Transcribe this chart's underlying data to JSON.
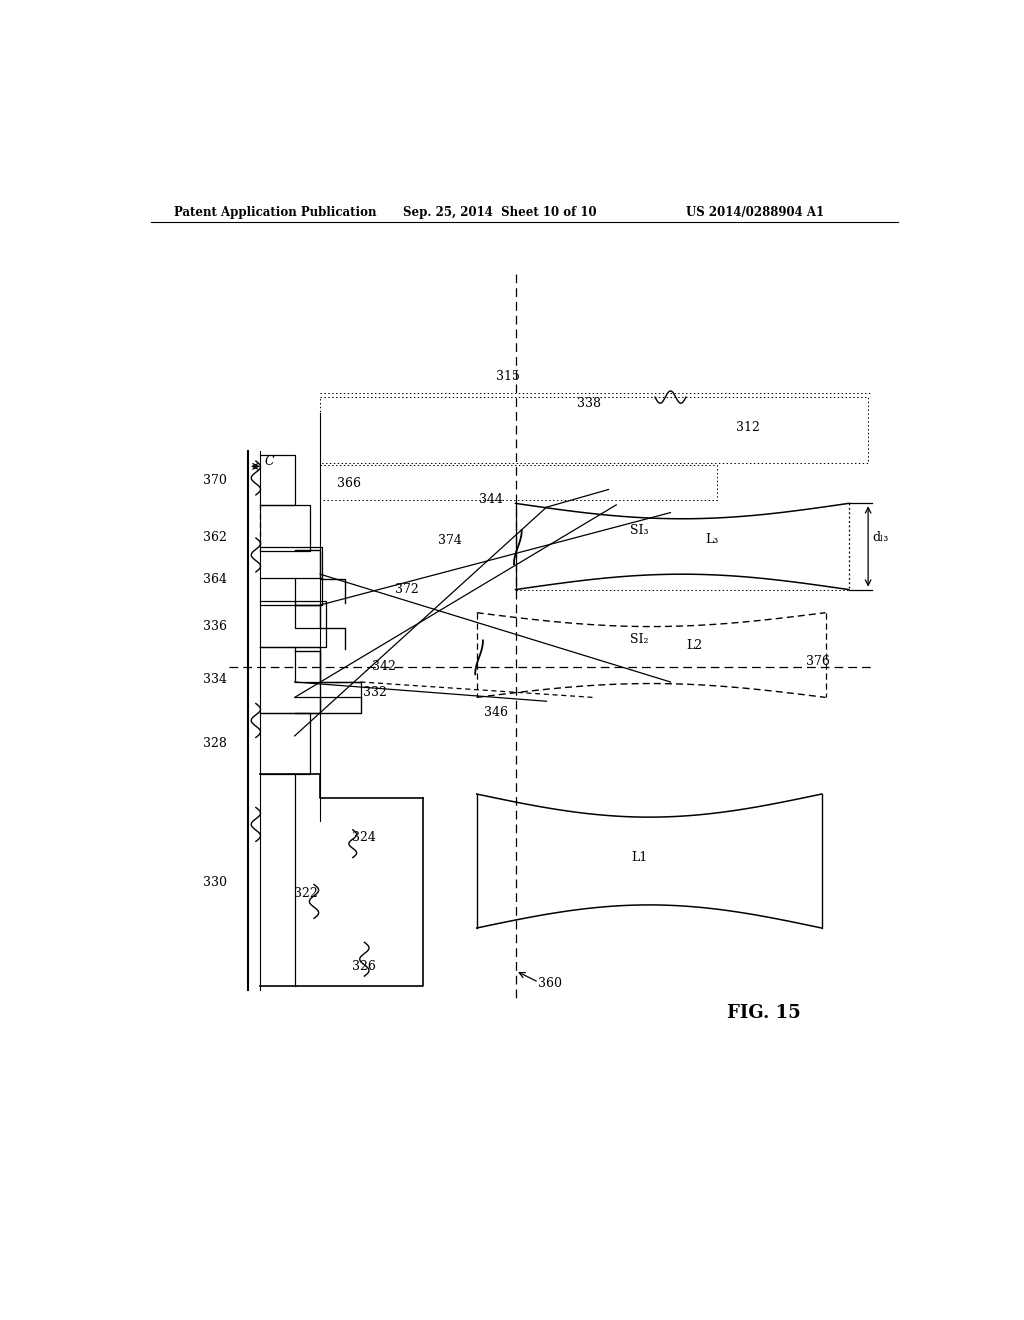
{
  "header_left": "Patent Application Publication",
  "header_mid": "Sep. 25, 2014  Sheet 10 of 10",
  "header_right": "US 2014/0288904 A1",
  "fig_label": "FIG. 15",
  "bg_color": "#ffffff",
  "lc": "#000000"
}
